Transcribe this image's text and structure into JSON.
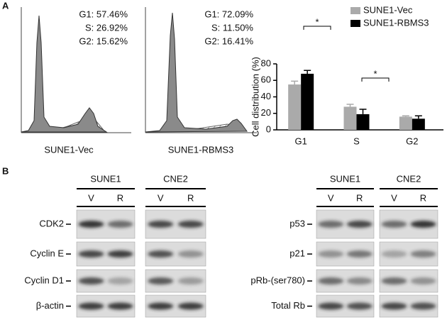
{
  "panel_labels": [
    "A",
    "B"
  ],
  "flow_panels": [
    {
      "label": "SUNE1-Vec",
      "stats": [
        "G1: 57.46%",
        "S: 26.92%",
        "G2: 15.62%"
      ]
    },
    {
      "label": "SUNE1-RBMS3",
      "stats": [
        "G1: 72.09%",
        "S: 11.50%",
        "G2: 16.41%"
      ]
    }
  ],
  "chart_data": {
    "type": "bar",
    "ylabel": "Cell distribution (%)",
    "categories": [
      "G1",
      "S",
      "G2"
    ],
    "series": [
      {
        "name": "SUNE1-Vec",
        "color": "#aaaaaa",
        "values": [
          55,
          28,
          16
        ],
        "errors": [
          4,
          3,
          1
        ]
      },
      {
        "name": "SUNE1-RBMS3",
        "color": "#000000",
        "values": [
          68,
          19,
          13.5
        ],
        "errors": [
          4,
          6,
          3.5
        ]
      }
    ],
    "ylim": [
      0,
      80
    ],
    "yticks": [
      0,
      20,
      40,
      60,
      80
    ],
    "legend": "upper right",
    "annotations": [
      "*",
      "*"
    ]
  },
  "blots": [
    {
      "groups": [
        "SUNE1",
        "CNE2"
      ],
      "lanes": [
        "V",
        "R",
        "V",
        "R"
      ],
      "rows": [
        "CDK2",
        "Cyclin E",
        "Cyclin D1",
        "β-actin"
      ]
    },
    {
      "groups": [
        "SUNE1",
        "CNE2"
      ],
      "lanes": [
        "V",
        "R",
        "V",
        "R"
      ],
      "rows": [
        "p53",
        "p21",
        "pRb-(ser780)",
        "Total Rb"
      ]
    }
  ]
}
